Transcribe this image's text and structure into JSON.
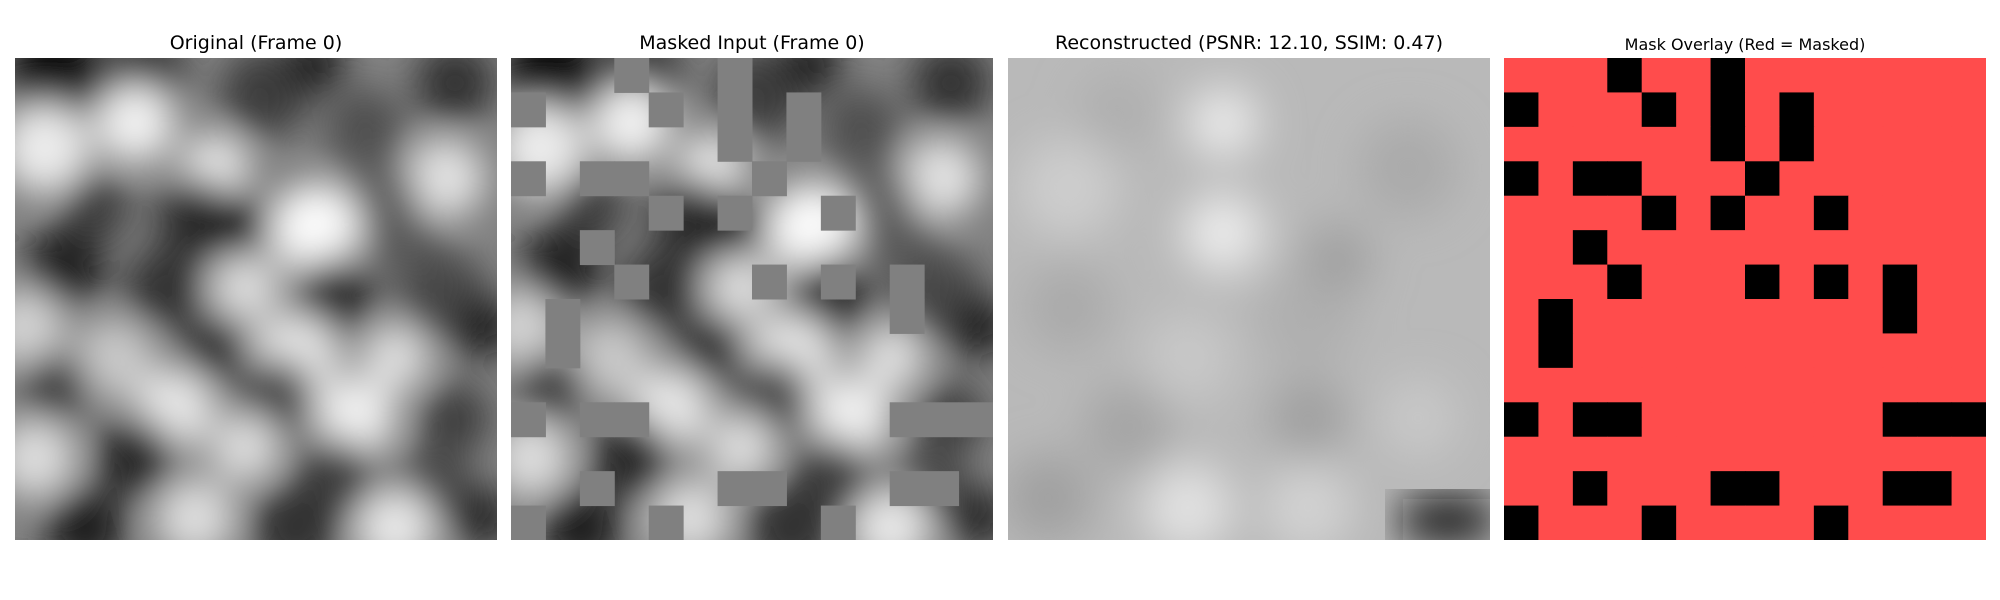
{
  "panels": [
    {
      "title": "Original (Frame 0)"
    },
    {
      "title": "Masked Input (Frame 0)"
    },
    {
      "title": "Reconstructed (PSNR: 12.10, SSIM: 0.47)"
    },
    {
      "title": "Mask Overlay (Red = Masked)"
    }
  ],
  "colors": {
    "mask_fill": "#808080",
    "overlay_red": "#ff4c4c",
    "overlay_visible": "#000000"
  },
  "mask_grid": {
    "rows": 14,
    "cols": 14,
    "visible_cells": [
      [
        0,
        3
      ],
      [
        0,
        6
      ],
      [
        1,
        0
      ],
      [
        1,
        4
      ],
      [
        1,
        6
      ],
      [
        1,
        8
      ],
      [
        2,
        6
      ],
      [
        2,
        8
      ],
      [
        3,
        0
      ],
      [
        3,
        2
      ],
      [
        3,
        3
      ],
      [
        3,
        7
      ],
      [
        4,
        4
      ],
      [
        4,
        6
      ],
      [
        4,
        9
      ],
      [
        5,
        2
      ],
      [
        6,
        3
      ],
      [
        6,
        7
      ],
      [
        6,
        9
      ],
      [
        6,
        11
      ],
      [
        7,
        1
      ],
      [
        7,
        11
      ],
      [
        8,
        1
      ],
      [
        10,
        0
      ],
      [
        10,
        2
      ],
      [
        10,
        3
      ],
      [
        10,
        11
      ],
      [
        10,
        12
      ],
      [
        10,
        13
      ],
      [
        12,
        2
      ],
      [
        12,
        6
      ],
      [
        12,
        7
      ],
      [
        12,
        11
      ],
      [
        12,
        12
      ],
      [
        13,
        0
      ],
      [
        13,
        4
      ],
      [
        13,
        9
      ]
    ]
  }
}
